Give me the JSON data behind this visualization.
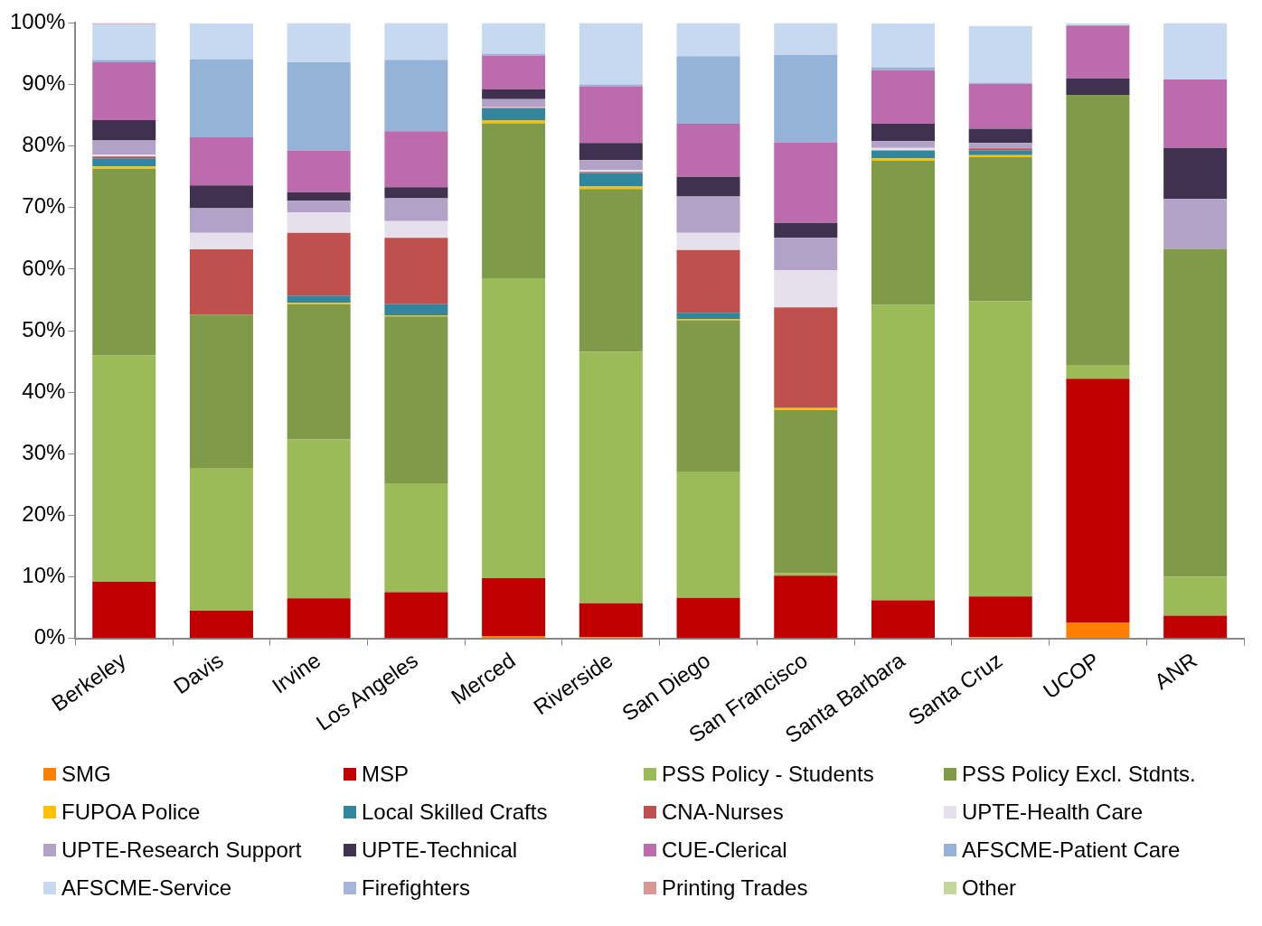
{
  "chart_data": {
    "type": "bar",
    "stacked": true,
    "legend": "bottom",
    "categories": [
      "Berkeley",
      "Davis",
      "Irvine",
      "Los Angeles",
      "Merced",
      "Riverside",
      "San Diego",
      "San Francisco",
      "Santa Barbara",
      "Santa Cruz",
      "UCOP",
      "ANR"
    ],
    "ylim": [
      0,
      100
    ],
    "yticks": [
      {
        "value": 0,
        "label": "0%"
      },
      {
        "value": 10,
        "label": "10%"
      },
      {
        "value": 20,
        "label": "20%"
      },
      {
        "value": 30,
        "label": "30%"
      },
      {
        "value": 40,
        "label": "40%"
      },
      {
        "value": 50,
        "label": "50%"
      },
      {
        "value": 60,
        "label": "60%"
      },
      {
        "value": 70,
        "label": "70%"
      },
      {
        "value": 80,
        "label": "80%"
      },
      {
        "value": 90,
        "label": "90%"
      },
      {
        "value": 100,
        "label": "100%"
      }
    ],
    "series": [
      {
        "name": "SMG",
        "color": "#ff7f00",
        "values": [
          0,
          0,
          0,
          0,
          0.4,
          0.2,
          0,
          0,
          0,
          0.2,
          2.6,
          0
        ]
      },
      {
        "name": "MSP",
        "color": "#c00000",
        "values": [
          9.2,
          4.5,
          6.5,
          7.5,
          9.4,
          5.5,
          6.6,
          10.2,
          6.2,
          6.6,
          39.6,
          3.7
        ]
      },
      {
        "name": "PSS Policy - Students",
        "color": "#9bbb59",
        "values": [
          36.8,
          23.2,
          25.8,
          17.7,
          48.7,
          40.9,
          20.5,
          0.4,
          48.0,
          48.0,
          2.1,
          6.3
        ]
      },
      {
        "name": "PSS Policy Excl. Stdnts.",
        "color": "#7f9a48",
        "values": [
          30.3,
          24.9,
          22.0,
          27.1,
          25.2,
          26.4,
          24.6,
          26.5,
          23.4,
          23.4,
          44.0,
          53.3
        ]
      },
      {
        "name": "FUPOA Police",
        "color": "#ffc000",
        "values": [
          0.4,
          null,
          0.2,
          0.2,
          0.5,
          0.4,
          0.2,
          0.3,
          0.4,
          0.3,
          0,
          0
        ]
      },
      {
        "name": "Local Skilled Crafts",
        "color": "#31859c",
        "values": [
          1.3,
          0,
          1.2,
          1.8,
          1.9,
          2.2,
          1.0,
          0.1,
          1.3,
          0.8,
          0,
          0
        ]
      },
      {
        "name": "CNA-Nurses",
        "color": "#c0504d",
        "values": [
          0.3,
          10.6,
          10.2,
          10.8,
          0.1,
          0.2,
          10.2,
          16.3,
          null,
          0.3,
          0,
          0
        ]
      },
      {
        "name": "UPTE-Health Care",
        "color": "#e6e0ec",
        "values": [
          0.3,
          2.7,
          3.3,
          2.7,
          0.1,
          0.3,
          2.8,
          6.0,
          0.4,
          null,
          0,
          0
        ]
      },
      {
        "name": "UPTE-Research Support",
        "color": "#b2a2c7",
        "values": [
          2.3,
          4.0,
          1.9,
          3.7,
          1.3,
          1.6,
          5.9,
          5.3,
          1.1,
          0.9,
          0,
          8.1
        ]
      },
      {
        "name": "UPTE-Technical",
        "color": "#403151",
        "values": [
          3.3,
          3.7,
          1.4,
          1.8,
          1.6,
          2.8,
          3.2,
          2.4,
          2.8,
          2.3,
          2.7,
          8.3
        ]
      },
      {
        "name": "CUE-Clerical",
        "color": "#bc6cac",
        "values": [
          9.4,
          7.8,
          6.8,
          9.1,
          5.5,
          9.2,
          8.6,
          13.1,
          8.7,
          7.3,
          8.6,
          11.1
        ]
      },
      {
        "name": "AFSCME-Patient Care",
        "color": "#95b3d7",
        "values": [
          0.4,
          12.7,
          14.3,
          11.6,
          0.3,
          0.3,
          11.0,
          14.2,
          0.5,
          0.2,
          0,
          0
        ]
      },
      {
        "name": "AFSCME-Service",
        "color": "#c6d9f1",
        "values": [
          5.8,
          5.8,
          6.4,
          6.0,
          5.0,
          10.0,
          5.4,
          5.2,
          7.1,
          9.2,
          0.4,
          9.2
        ]
      },
      {
        "name": "Firefighters",
        "color": "#a6b4da",
        "values": [
          0,
          0,
          0,
          0,
          0,
          0,
          0,
          0,
          0,
          0,
          0,
          0
        ]
      },
      {
        "name": "Printing Trades",
        "color": "#d99694",
        "values": [
          0.2,
          0,
          0,
          0,
          0,
          0,
          0,
          0,
          0,
          0,
          0,
          0
        ]
      },
      {
        "name": "Other",
        "color": "#c3d69b",
        "values": [
          0,
          0,
          0,
          0,
          0,
          0,
          0,
          0,
          0,
          0,
          0,
          0
        ]
      }
    ]
  }
}
